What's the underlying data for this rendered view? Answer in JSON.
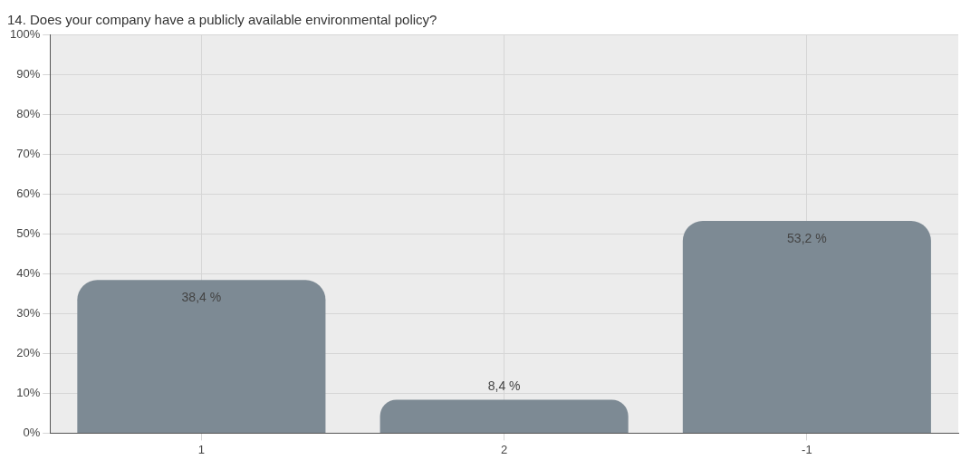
{
  "chart_data": {
    "type": "bar",
    "title": "14. Does your company have a publicly available environmental policy?",
    "categories": [
      "1",
      "2",
      "-1"
    ],
    "values": [
      38.4,
      8.4,
      53.2
    ],
    "value_labels": [
      "38,4 %",
      "8,4 %",
      "53,2 %"
    ],
    "color": "#7d8a94",
    "ylim": [
      0,
      100
    ],
    "yticks": [
      {
        "value": 0,
        "label": "0%"
      },
      {
        "value": 10,
        "label": "10%"
      },
      {
        "value": 20,
        "label": "20%"
      },
      {
        "value": 30,
        "label": "30%"
      },
      {
        "value": 40,
        "label": "40%"
      },
      {
        "value": 50,
        "label": "50%"
      },
      {
        "value": 60,
        "label": "60%"
      },
      {
        "value": 70,
        "label": "70%"
      },
      {
        "value": 80,
        "label": "80%"
      },
      {
        "value": 90,
        "label": "90%"
      },
      {
        "value": 100,
        "label": "100%"
      }
    ],
    "grid": true,
    "legend": false
  }
}
